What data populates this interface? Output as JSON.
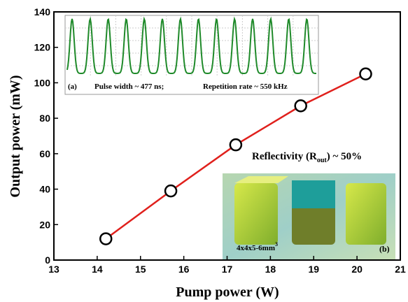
{
  "chart_data": {
    "type": "line",
    "x": [
      14.2,
      15.7,
      17.2,
      18.7,
      20.2
    ],
    "series": [
      {
        "color": "#e0201c",
        "values": [
          12,
          39,
          65,
          87,
          105
        ]
      }
    ],
    "xlim": [
      13,
      21
    ],
    "xticks": [
      13,
      14,
      15,
      16,
      17,
      18,
      19,
      20,
      21
    ],
    "ylim": [
      0,
      140
    ],
    "yticks": [
      0,
      20,
      40,
      60,
      80,
      100,
      120,
      140
    ],
    "xlabel": "Pump power (W)",
    "ylabel": "Output power (mW)",
    "annotation": {
      "text": "Reflectivity (R",
      "sub": "out",
      "tail": ") ~ 50%"
    },
    "inset_a": {
      "label": "(a)",
      "pulse_width": "Pulse width ~ 477 ns;",
      "rep_rate": "Repetition rate ~ 550 kHz"
    },
    "inset_b": {
      "label": "(b)",
      "size": "4x4x5-6mm",
      "size_sup": "3"
    }
  }
}
